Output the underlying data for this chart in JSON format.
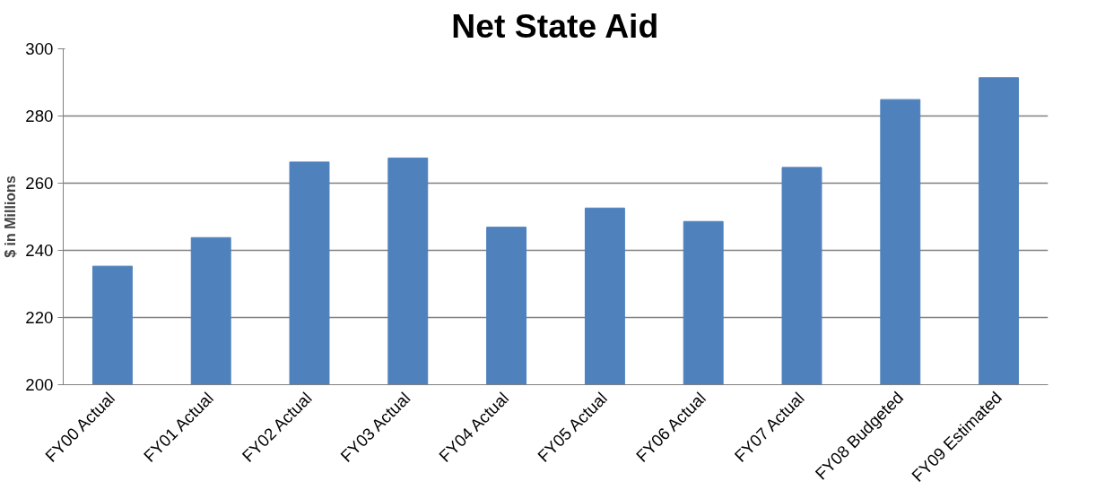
{
  "chart_data": {
    "type": "bar",
    "title": "Net State Aid",
    "ylabel": "$ in Millions",
    "categories": [
      "FY00 Actual",
      "FY01 Actual",
      "FY02 Actual",
      "FY03 Actual",
      "FY04 Actual",
      "FY05 Actual",
      "FY06 Actual",
      "FY07 Actual",
      "FY08 Budgeted",
      "FY09 Estimated"
    ],
    "values": [
      235.3,
      243.8,
      266.3,
      267.5,
      246.9,
      252.6,
      248.6,
      264.7,
      284.9,
      291.4
    ],
    "color": "#4f81bd",
    "ylim": [
      200,
      300
    ],
    "yticks": [
      200,
      220,
      240,
      260,
      280,
      300
    ],
    "grid": "y"
  }
}
